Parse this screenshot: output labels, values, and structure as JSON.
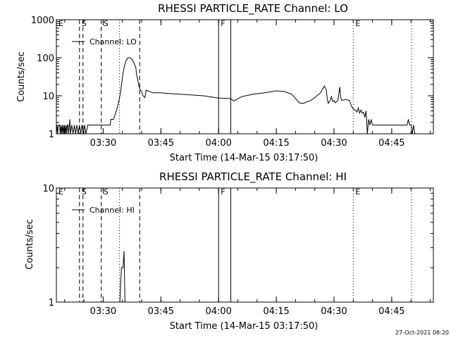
{
  "colors": {
    "background": "#ffffff",
    "foreground": "#000000"
  },
  "timestamp": "27-Oct-2021 08:20",
  "chart_data": [
    {
      "type": "line",
      "title": "RHESSI PARTICLE_RATE Channel: LO",
      "xlabel": "Start Time (14-Mar-15 03:17:50)",
      "ylabel": "Counts/sec",
      "yscale": "log",
      "ylim": [
        1,
        1000
      ],
      "xlim_minutes_after_start": [
        0,
        98
      ],
      "x_ticks": [
        "03:30",
        "03:45",
        "04:00",
        "04:15",
        "04:30",
        "04:45"
      ],
      "y_ticks": [
        "1",
        "10",
        "100",
        "1000"
      ],
      "grid": false,
      "legend": {
        "position": "top-left",
        "entries": [
          "Channel: LO"
        ]
      },
      "markers": [
        {
          "label": "E",
          "time": "03:17:50",
          "style": "dotted"
        },
        {
          "label": "S",
          "time": "03:23:50",
          "style": "dashed"
        },
        {
          "label": "",
          "time": "03:24:45",
          "style": "dashed"
        },
        {
          "label": "S",
          "time": "03:29:30",
          "style": "dashed"
        },
        {
          "label": "",
          "time": "03:34:15",
          "style": "dotted"
        },
        {
          "label": "",
          "time": "03:39:30",
          "style": "dashed"
        },
        {
          "label": "F",
          "time": "04:00:00",
          "style": "solid"
        },
        {
          "label": "",
          "time": "04:03:10",
          "style": "solid"
        },
        {
          "label": "E",
          "time": "04:35:00",
          "style": "dotted"
        },
        {
          "label": "",
          "time": "04:50:10",
          "style": "dotted"
        }
      ],
      "series": [
        {
          "name": "Channel: LO",
          "points": [
            [
              "03:17:50",
              1
            ],
            [
              "03:18:00",
              1.7
            ],
            [
              "03:18:10",
              1
            ],
            [
              "03:18:20",
              1.7
            ],
            [
              "03:18:40",
              1.7
            ],
            [
              "03:18:50",
              1
            ],
            [
              "03:19:00",
              1.7
            ],
            [
              "03:19:10",
              1
            ],
            [
              "03:19:20",
              1.7
            ],
            [
              "03:19:30",
              1
            ],
            [
              "03:19:40",
              1.7
            ],
            [
              "03:19:50",
              1
            ],
            [
              "03:20:00",
              1.7
            ],
            [
              "03:20:10",
              1
            ],
            [
              "03:20:20",
              1.7
            ],
            [
              "03:20:30",
              1
            ],
            [
              "03:20:40",
              1.7
            ],
            [
              "03:20:50",
              1.7
            ],
            [
              "03:21:00",
              1
            ],
            [
              "03:21:20",
              2.4
            ],
            [
              "03:21:30",
              1
            ],
            [
              "03:21:50",
              1.7
            ],
            [
              "03:22:10",
              1
            ],
            [
              "03:22:30",
              1.7
            ],
            [
              "03:22:50",
              1
            ],
            [
              "03:23:10",
              1.7
            ],
            [
              "03:23:30",
              1
            ],
            [
              "03:23:50",
              1.7
            ],
            [
              "03:24:10",
              1
            ],
            [
              "03:24:30",
              1.7
            ],
            [
              "03:24:50",
              1
            ],
            [
              "03:25:10",
              1.7
            ],
            [
              "03:25:30",
              1
            ],
            [
              "03:26:00",
              1.7
            ],
            [
              "03:27:00",
              1.7
            ],
            [
              "03:28:00",
              1.7
            ],
            [
              "03:29:00",
              1.7
            ],
            [
              "03:30:00",
              1.7
            ],
            [
              "03:31:00",
              1.7
            ],
            [
              "03:31:50",
              1.7
            ],
            [
              "03:32:00",
              2.4
            ],
            [
              "03:32:40",
              2.4
            ],
            [
              "03:33:00",
              3
            ],
            [
              "03:33:30",
              4.2
            ],
            [
              "03:34:00",
              6.7
            ],
            [
              "03:34:30",
              12
            ],
            [
              "03:35:00",
              30
            ],
            [
              "03:35:30",
              60
            ],
            [
              "03:36:00",
              87
            ],
            [
              "03:36:30",
              100
            ],
            [
              "03:37:00",
              100
            ],
            [
              "03:37:30",
              90
            ],
            [
              "03:38:00",
              73
            ],
            [
              "03:38:30",
              55
            ],
            [
              "03:38:40",
              37
            ],
            [
              "03:39:00",
              26
            ],
            [
              "03:39:20",
              17
            ],
            [
              "03:39:40",
              14
            ],
            [
              "03:40:00",
              13
            ],
            [
              "03:40:20",
              10
            ],
            [
              "03:40:50",
              9
            ],
            [
              "03:41:10",
              14
            ],
            [
              "03:42:00",
              13
            ],
            [
              "03:43:00",
              12
            ],
            [
              "03:45:00",
              12
            ],
            [
              "03:47:00",
              11.5
            ],
            [
              "03:50:00",
              11
            ],
            [
              "03:53:00",
              10.5
            ],
            [
              "03:56:00",
              10
            ],
            [
              "04:00:00",
              8.7
            ],
            [
              "04:03:00",
              8.5
            ],
            [
              "04:04:00",
              7.3
            ],
            [
              "04:06:00",
              9.5
            ],
            [
              "04:09:00",
              11
            ],
            [
              "04:12:00",
              12
            ],
            [
              "04:15:00",
              13.5
            ],
            [
              "04:17:00",
              13
            ],
            [
              "04:19:00",
              11
            ],
            [
              "04:20:00",
              8.5
            ],
            [
              "04:21:00",
              6.5
            ],
            [
              "04:22:00",
              6.3
            ],
            [
              "04:23:00",
              7
            ],
            [
              "04:24:00",
              7.5
            ],
            [
              "04:25:00",
              9
            ],
            [
              "04:26:30",
              12
            ],
            [
              "04:27:30",
              18
            ],
            [
              "04:28:00",
              14
            ],
            [
              "04:28:15",
              8.5
            ],
            [
              "04:28:30",
              6.3
            ],
            [
              "04:29:00",
              7.5
            ],
            [
              "04:29:20",
              9.5
            ],
            [
              "04:29:40",
              7
            ],
            [
              "04:30:00",
              7.5
            ],
            [
              "04:30:20",
              6.5
            ],
            [
              "04:31:00",
              7.5
            ],
            [
              "04:31:30",
              17
            ],
            [
              "04:31:45",
              9
            ],
            [
              "04:32:00",
              7.5
            ],
            [
              "04:33:00",
              8
            ],
            [
              "04:34:00",
              7.5
            ],
            [
              "04:34:30",
              5.5
            ],
            [
              "04:35:00",
              4.5
            ],
            [
              "04:35:30",
              4.2
            ],
            [
              "04:36:00",
              3.7
            ],
            [
              "04:36:20",
              4.8
            ],
            [
              "04:36:40",
              3.5
            ],
            [
              "04:37:00",
              4.2
            ],
            [
              "04:37:20",
              3.5
            ],
            [
              "04:37:40",
              3.7
            ],
            [
              "04:38:00",
              2.7
            ],
            [
              "04:38:20",
              4
            ],
            [
              "04:38:40",
              1
            ],
            [
              "04:39:00",
              2.4
            ],
            [
              "04:39:20",
              1.7
            ],
            [
              "04:39:40",
              2.4
            ],
            [
              "04:40:00",
              1.7
            ],
            [
              "04:45:00",
              1.7
            ],
            [
              "04:49:00",
              1.7
            ],
            [
              "04:49:20",
              2.4
            ],
            [
              "04:49:40",
              1.7
            ],
            [
              "04:50:00",
              1.7
            ],
            [
              "04:50:20",
              1
            ],
            [
              "04:50:40",
              1.7
            ],
            [
              "04:51:00",
              1
            ]
          ]
        }
      ]
    },
    {
      "type": "line",
      "title": "RHESSI PARTICLE_RATE Channel: HI",
      "xlabel": "Start Time (14-Mar-15 03:17:50)",
      "ylabel": "Counts/sec",
      "yscale": "log",
      "ylim": [
        1,
        10
      ],
      "xlim_minutes_after_start": [
        0,
        98
      ],
      "x_ticks": [
        "03:30",
        "03:45",
        "04:00",
        "04:15",
        "04:30",
        "04:45"
      ],
      "y_ticks": [
        "1",
        "10"
      ],
      "grid": false,
      "legend": {
        "position": "top-left",
        "entries": [
          "Channel: HI"
        ]
      },
      "markers": [
        {
          "label": "E",
          "time": "03:17:50",
          "style": "dotted"
        },
        {
          "label": "S",
          "time": "03:23:50",
          "style": "dashed"
        },
        {
          "label": "",
          "time": "03:24:45",
          "style": "dashed"
        },
        {
          "label": "S",
          "time": "03:29:30",
          "style": "dashed"
        },
        {
          "label": "",
          "time": "03:34:15",
          "style": "dotted"
        },
        {
          "label": "",
          "time": "03:39:30",
          "style": "dashed"
        },
        {
          "label": "F",
          "time": "04:00:00",
          "style": "solid"
        },
        {
          "label": "",
          "time": "04:03:10",
          "style": "solid"
        },
        {
          "label": "E",
          "time": "04:35:00",
          "style": "dotted"
        },
        {
          "label": "",
          "time": "04:50:10",
          "style": "dotted"
        }
      ],
      "series": [
        {
          "name": "Channel: HI",
          "points": [
            [
              "03:34:20",
              1
            ],
            [
              "03:34:45",
              2
            ],
            [
              "03:35:10",
              2
            ],
            [
              "03:35:25",
              2.8
            ],
            [
              "03:35:40",
              1
            ],
            [
              "03:35:50",
              1
            ]
          ]
        }
      ]
    }
  ]
}
